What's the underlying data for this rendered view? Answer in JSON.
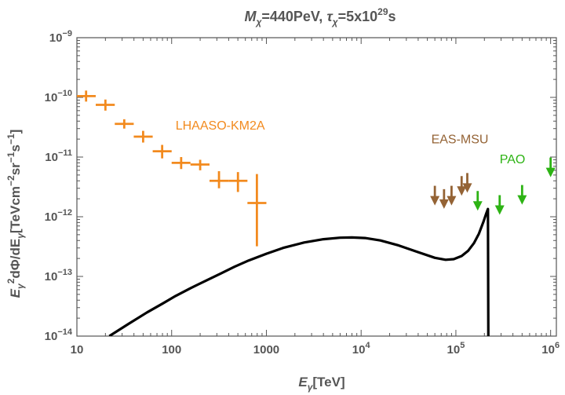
{
  "chart_data": {
    "type": "scatter",
    "title": {
      "m_sym": "M",
      "m_sub": "χ",
      "m_val": "=440PeV,",
      "tau_sym": "τ",
      "tau_sub": "χ",
      "tau_val_pre": "=5x10",
      "tau_exp": "29",
      "tau_unit": "s"
    },
    "xlabel": {
      "sym": "E",
      "sub": "γ",
      "unit": "[TeV]"
    },
    "ylabel": {
      "p1": "E",
      "s1": "γ",
      "e1": "2",
      "p2": "dΦ/dE",
      "s2": "γ",
      "p3": "[TeVcm",
      "e3": "−2",
      "p4": "sr",
      "e4": "−1",
      "p5": "s",
      "e5": "−1",
      "p6": "]"
    },
    "x_scale": "log",
    "y_scale": "log",
    "xlim": [
      10,
      1150000
    ],
    "ylim": [
      1e-14,
      1e-09
    ],
    "x_ticks": [
      {
        "value": 10,
        "base": "10"
      },
      {
        "value": 100,
        "base": "100"
      },
      {
        "value": 1000,
        "base": "1000"
      },
      {
        "value": 10000,
        "base": "10",
        "exp": "4"
      },
      {
        "value": 100000,
        "base": "10",
        "exp": "5"
      },
      {
        "value": 1000000,
        "base": "10",
        "exp": "6"
      }
    ],
    "y_ticks": [
      {
        "value": 1e-14,
        "exp": "−14"
      },
      {
        "value": 1e-13,
        "exp": "−13"
      },
      {
        "value": 1e-12,
        "exp": "−12"
      },
      {
        "value": 1e-11,
        "exp": "−11"
      },
      {
        "value": 1e-10,
        "exp": "−10"
      },
      {
        "value": 1e-09,
        "exp": "−9"
      }
    ],
    "grid": false,
    "series": [
      {
        "name": "LHAASO-KM2A",
        "kind": "errorbar",
        "color": "#f28a1e",
        "points": [
          {
            "x": 12.5,
            "y": 1.05e-10,
            "x_lo": 10,
            "x_hi": 15.8,
            "y_lo": 8.5e-11,
            "y_hi": 1.3e-10
          },
          {
            "x": 20,
            "y": 7.5e-11,
            "x_lo": 15.8,
            "x_hi": 25.1,
            "y_lo": 6e-11,
            "y_hi": 9.2e-11
          },
          {
            "x": 31.6,
            "y": 3.6e-11,
            "x_lo": 25.1,
            "x_hi": 39.8,
            "y_lo": 3e-11,
            "y_hi": 4.3e-11
          },
          {
            "x": 50,
            "y": 2.2e-11,
            "x_lo": 39.8,
            "x_hi": 63.1,
            "y_lo": 1.75e-11,
            "y_hi": 2.75e-11
          },
          {
            "x": 79.4,
            "y": 1.25e-11,
            "x_lo": 63.1,
            "x_hi": 100,
            "y_lo": 9.5e-12,
            "y_hi": 1.6e-11
          },
          {
            "x": 126,
            "y": 8e-12,
            "x_lo": 100,
            "x_hi": 158,
            "y_lo": 6.3e-12,
            "y_hi": 1e-11
          },
          {
            "x": 200,
            "y": 7.5e-12,
            "x_lo": 158,
            "x_hi": 251,
            "y_lo": 6e-12,
            "y_hi": 9e-12
          },
          {
            "x": 316,
            "y": 4e-12,
            "x_lo": 251,
            "x_hi": 398,
            "y_lo": 3e-12,
            "y_hi": 5.8e-12
          },
          {
            "x": 501,
            "y": 4e-12,
            "x_lo": 398,
            "x_hi": 631,
            "y_lo": 2.6e-12,
            "y_hi": 5.6e-12
          },
          {
            "x": 794,
            "y": 1.7e-12,
            "x_lo": 631,
            "x_hi": 1000,
            "y_lo": 3.2e-13,
            "y_hi": 5.2e-12
          }
        ]
      },
      {
        "name": "EAS-MSU",
        "kind": "upper_limit",
        "color": "#946335",
        "points": [
          {
            "x": 60000,
            "y": 3.3e-12
          },
          {
            "x": 75000,
            "y": 2.9e-12
          },
          {
            "x": 90000,
            "y": 3.3e-12
          },
          {
            "x": 115000,
            "y": 4.8e-12
          },
          {
            "x": 132000,
            "y": 5.4e-12
          }
        ]
      },
      {
        "name": "PAO",
        "kind": "upper_limit",
        "color": "#2db314",
        "points": [
          {
            "x": 170000,
            "y": 2.7e-12
          },
          {
            "x": 290000,
            "y": 2.3e-12
          },
          {
            "x": 500000,
            "y": 3.4e-12
          },
          {
            "x": 1000000,
            "y": 9.8e-12
          }
        ]
      },
      {
        "kind": "line",
        "color": "#000000",
        "points": [
          {
            "x": 22,
            "y": 1e-14
          },
          {
            "x": 35,
            "y": 1.6e-14
          },
          {
            "x": 55,
            "y": 2.5e-14
          },
          {
            "x": 80,
            "y": 3.5e-14
          },
          {
            "x": 110,
            "y": 4.7e-14
          },
          {
            "x": 160,
            "y": 6.4e-14
          },
          {
            "x": 230,
            "y": 8.5e-14
          },
          {
            "x": 330,
            "y": 1.12e-13
          },
          {
            "x": 460,
            "y": 1.45e-13
          },
          {
            "x": 650,
            "y": 1.85e-13
          },
          {
            "x": 1000,
            "y": 2.4e-13
          },
          {
            "x": 1500,
            "y": 3e-13
          },
          {
            "x": 2500,
            "y": 3.7e-13
          },
          {
            "x": 4000,
            "y": 4.2e-13
          },
          {
            "x": 6000,
            "y": 4.45e-13
          },
          {
            "x": 8000,
            "y": 4.5e-13
          },
          {
            "x": 11000,
            "y": 4.4e-13
          },
          {
            "x": 16000,
            "y": 4e-13
          },
          {
            "x": 25000,
            "y": 3.3e-13
          },
          {
            "x": 40000,
            "y": 2.55e-13
          },
          {
            "x": 60000,
            "y": 2.05e-13
          },
          {
            "x": 78000,
            "y": 1.9e-13
          },
          {
            "x": 95000,
            "y": 1.95e-13
          },
          {
            "x": 115000,
            "y": 2.2e-13
          },
          {
            "x": 135000,
            "y": 2.7e-13
          },
          {
            "x": 155000,
            "y": 3.6e-13
          },
          {
            "x": 175000,
            "y": 5.2e-13
          },
          {
            "x": 195000,
            "y": 8.2e-13
          },
          {
            "x": 210000,
            "y": 1.15e-12
          },
          {
            "x": 218000,
            "y": 1.35e-12
          },
          {
            "x": 220000,
            "y": 1e-14
          }
        ]
      }
    ],
    "annotations": [
      {
        "text": "LHAASO-KM2A",
        "x": 110,
        "y": 2.9e-11,
        "color": "#f28a1e"
      },
      {
        "text": "EAS-MSU",
        "x": 55000,
        "y": 1.7e-11,
        "color": "#946335"
      },
      {
        "text": "PAO",
        "x": 290000,
        "y": 7.8e-12,
        "color": "#2db314"
      }
    ]
  }
}
